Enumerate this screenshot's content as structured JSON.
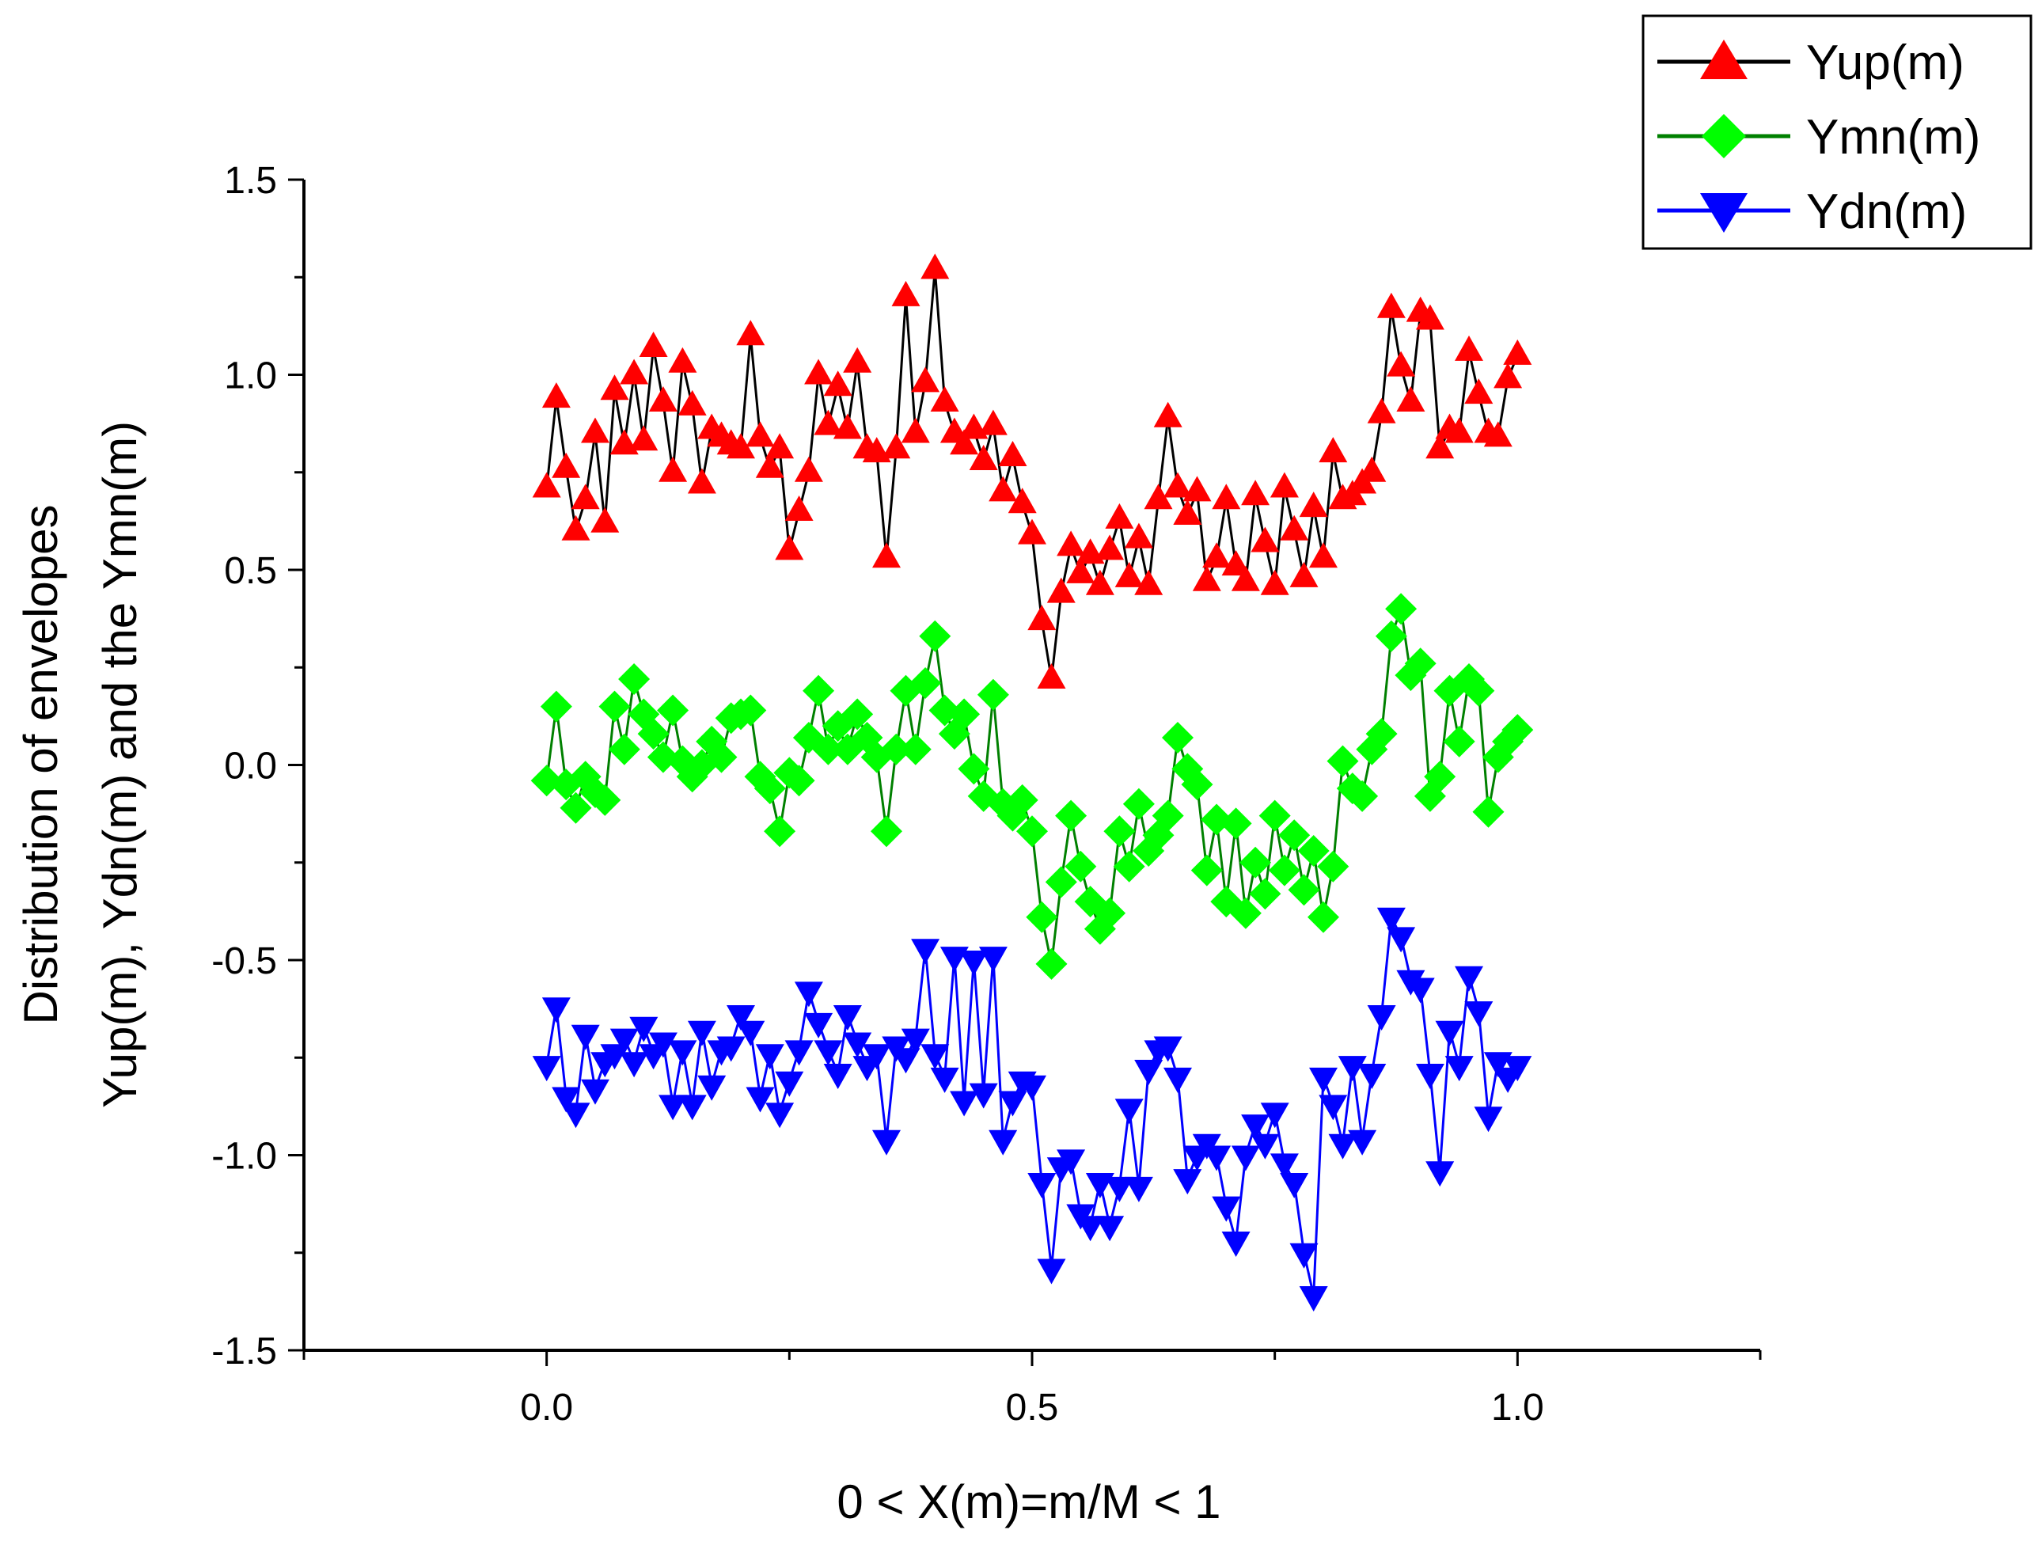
{
  "chart_data": {
    "type": "line",
    "title": "",
    "xlabel": "0 < X(m)=m/M < 1",
    "ylabel_lines": [
      "Distribution of envelopes",
      "Yup(m),  Ydn(m) and the Ymn(m)"
    ],
    "xlim": [
      -0.25,
      1.25
    ],
    "ylim": [
      -1.5,
      1.5
    ],
    "x_ticks": [
      0.0,
      0.5,
      1.0
    ],
    "x_tick_labels": [
      "0.0",
      "0.5",
      "1.0"
    ],
    "y_ticks": [
      -1.5,
      -1.0,
      -0.5,
      0.0,
      0.5,
      1.0,
      1.5
    ],
    "y_tick_labels": [
      "-1.5",
      "-1.0",
      "-0.5",
      "0.0",
      "0.5",
      "1.0",
      "1.5"
    ],
    "grid": false,
    "legend_position": "top-right",
    "x": [
      0.0,
      0.01,
      0.02,
      0.03,
      0.04,
      0.05,
      0.06,
      0.07,
      0.08,
      0.09,
      0.1,
      0.11,
      0.12,
      0.13,
      0.14,
      0.15,
      0.16,
      0.17,
      0.18,
      0.19,
      0.2,
      0.21,
      0.22,
      0.23,
      0.24,
      0.25,
      0.26,
      0.27,
      0.28,
      0.29,
      0.3,
      0.31,
      0.32,
      0.33,
      0.34,
      0.35,
      0.36,
      0.37,
      0.38,
      0.39,
      0.4,
      0.41,
      0.42,
      0.43,
      0.44,
      0.45,
      0.46,
      0.47,
      0.48,
      0.49,
      0.5,
      0.51,
      0.52,
      0.53,
      0.54,
      0.55,
      0.56,
      0.57,
      0.58,
      0.59,
      0.6,
      0.61,
      0.62,
      0.63,
      0.64,
      0.65,
      0.66,
      0.67,
      0.68,
      0.69,
      0.7,
      0.71,
      0.72,
      0.73,
      0.74,
      0.75,
      0.76,
      0.77,
      0.78,
      0.79,
      0.8,
      0.81,
      0.82,
      0.83,
      0.84,
      0.85,
      0.86,
      0.87,
      0.88,
      0.89,
      0.9,
      0.91,
      0.92,
      0.93,
      0.94,
      0.95,
      0.96,
      0.97,
      0.98,
      0.99,
      1.0
    ],
    "series": [
      {
        "name": "Yup(m)",
        "line_color": "#000000",
        "marker_color": "#ff0000",
        "marker": "triangle-up",
        "values": [
          0.71,
          0.94,
          0.76,
          0.6,
          0.68,
          0.85,
          0.62,
          0.96,
          0.82,
          1.0,
          0.83,
          1.07,
          0.93,
          0.75,
          1.03,
          0.92,
          0.72,
          0.86,
          0.84,
          0.82,
          0.81,
          1.1,
          0.84,
          0.76,
          0.81,
          0.55,
          0.65,
          0.75,
          1.0,
          0.87,
          0.97,
          0.86,
          1.03,
          0.81,
          0.8,
          0.53,
          0.81,
          1.2,
          0.85,
          0.98,
          1.27,
          0.93,
          0.85,
          0.82,
          0.86,
          0.78,
          0.87,
          0.7,
          0.79,
          0.67,
          0.59,
          0.37,
          0.22,
          0.44,
          0.56,
          0.49,
          0.54,
          0.46,
          0.55,
          0.63,
          0.48,
          0.58,
          0.46,
          0.68,
          0.89,
          0.71,
          0.64,
          0.7,
          0.47,
          0.53,
          0.68,
          0.51,
          0.47,
          0.69,
          0.57,
          0.46,
          0.71,
          0.6,
          0.48,
          0.66,
          0.53,
          0.8,
          0.68,
          0.69,
          0.72,
          0.75,
          0.9,
          1.17,
          1.02,
          0.93,
          1.16,
          1.14,
          0.81,
          0.86,
          0.85,
          1.06,
          0.95,
          0.85,
          0.84,
          0.99,
          1.05
        ]
      },
      {
        "name": "Ymn(m)",
        "line_color": "#008000",
        "marker_color": "#00ff00",
        "marker": "diamond",
        "values": [
          -0.04,
          0.15,
          -0.05,
          -0.11,
          -0.03,
          -0.07,
          -0.09,
          0.15,
          0.04,
          0.22,
          0.13,
          0.08,
          0.02,
          0.14,
          0.01,
          -0.03,
          0.0,
          0.06,
          0.02,
          0.12,
          0.13,
          0.14,
          -0.03,
          -0.06,
          -0.17,
          -0.02,
          -0.04,
          0.07,
          0.19,
          0.04,
          0.1,
          0.04,
          0.13,
          0.07,
          0.02,
          -0.17,
          0.04,
          0.19,
          0.04,
          0.21,
          0.33,
          0.14,
          0.08,
          0.13,
          -0.01,
          -0.08,
          0.18,
          -0.1,
          -0.13,
          -0.09,
          -0.17,
          -0.39,
          -0.51,
          -0.3,
          -0.13,
          -0.26,
          -0.35,
          -0.42,
          -0.38,
          -0.17,
          -0.26,
          -0.1,
          -0.22,
          -0.18,
          -0.13,
          0.07,
          -0.01,
          -0.05,
          -0.27,
          -0.14,
          -0.35,
          -0.15,
          -0.38,
          -0.25,
          -0.33,
          -0.13,
          -0.27,
          -0.18,
          -0.32,
          -0.22,
          -0.39,
          -0.26,
          0.01,
          -0.06,
          -0.08,
          0.04,
          0.08,
          0.33,
          0.4,
          0.23,
          0.26,
          -0.08,
          -0.03,
          0.19,
          0.06,
          0.22,
          0.19,
          -0.12,
          0.02,
          0.06,
          0.09
        ]
      },
      {
        "name": "Ydn(m)",
        "line_color": "#0000ff",
        "marker_color": "#0000ff",
        "marker": "triangle-down",
        "values": [
          -0.77,
          -0.62,
          -0.85,
          -0.89,
          -0.69,
          -0.83,
          -0.76,
          -0.74,
          -0.7,
          -0.76,
          -0.67,
          -0.74,
          -0.71,
          -0.87,
          -0.73,
          -0.87,
          -0.68,
          -0.82,
          -0.73,
          -0.72,
          -0.64,
          -0.68,
          -0.85,
          -0.74,
          -0.89,
          -0.81,
          -0.73,
          -0.58,
          -0.66,
          -0.73,
          -0.79,
          -0.64,
          -0.71,
          -0.77,
          -0.74,
          -0.96,
          -0.72,
          -0.75,
          -0.7,
          -0.47,
          -0.74,
          -0.8,
          -0.49,
          -0.86,
          -0.5,
          -0.84,
          -0.49,
          -0.96,
          -0.86,
          -0.81,
          -0.82,
          -1.07,
          -1.29,
          -1.03,
          -1.01,
          -1.15,
          -1.18,
          -1.07,
          -1.18,
          -1.08,
          -0.88,
          -1.08,
          -0.78,
          -0.73,
          -0.72,
          -0.8,
          -1.06,
          -1.0,
          -0.97,
          -1.0,
          -1.13,
          -1.22,
          -1.0,
          -0.92,
          -0.97,
          -0.89,
          -1.02,
          -1.07,
          -1.25,
          -1.36,
          -0.8,
          -0.87,
          -0.97,
          -0.77,
          -0.96,
          -0.79,
          -0.64,
          -0.39,
          -0.44,
          -0.55,
          -0.57,
          -0.79,
          -1.04,
          -0.68,
          -0.77,
          -0.54,
          -0.63,
          -0.9,
          -0.76,
          -0.8,
          -0.77
        ]
      }
    ]
  }
}
